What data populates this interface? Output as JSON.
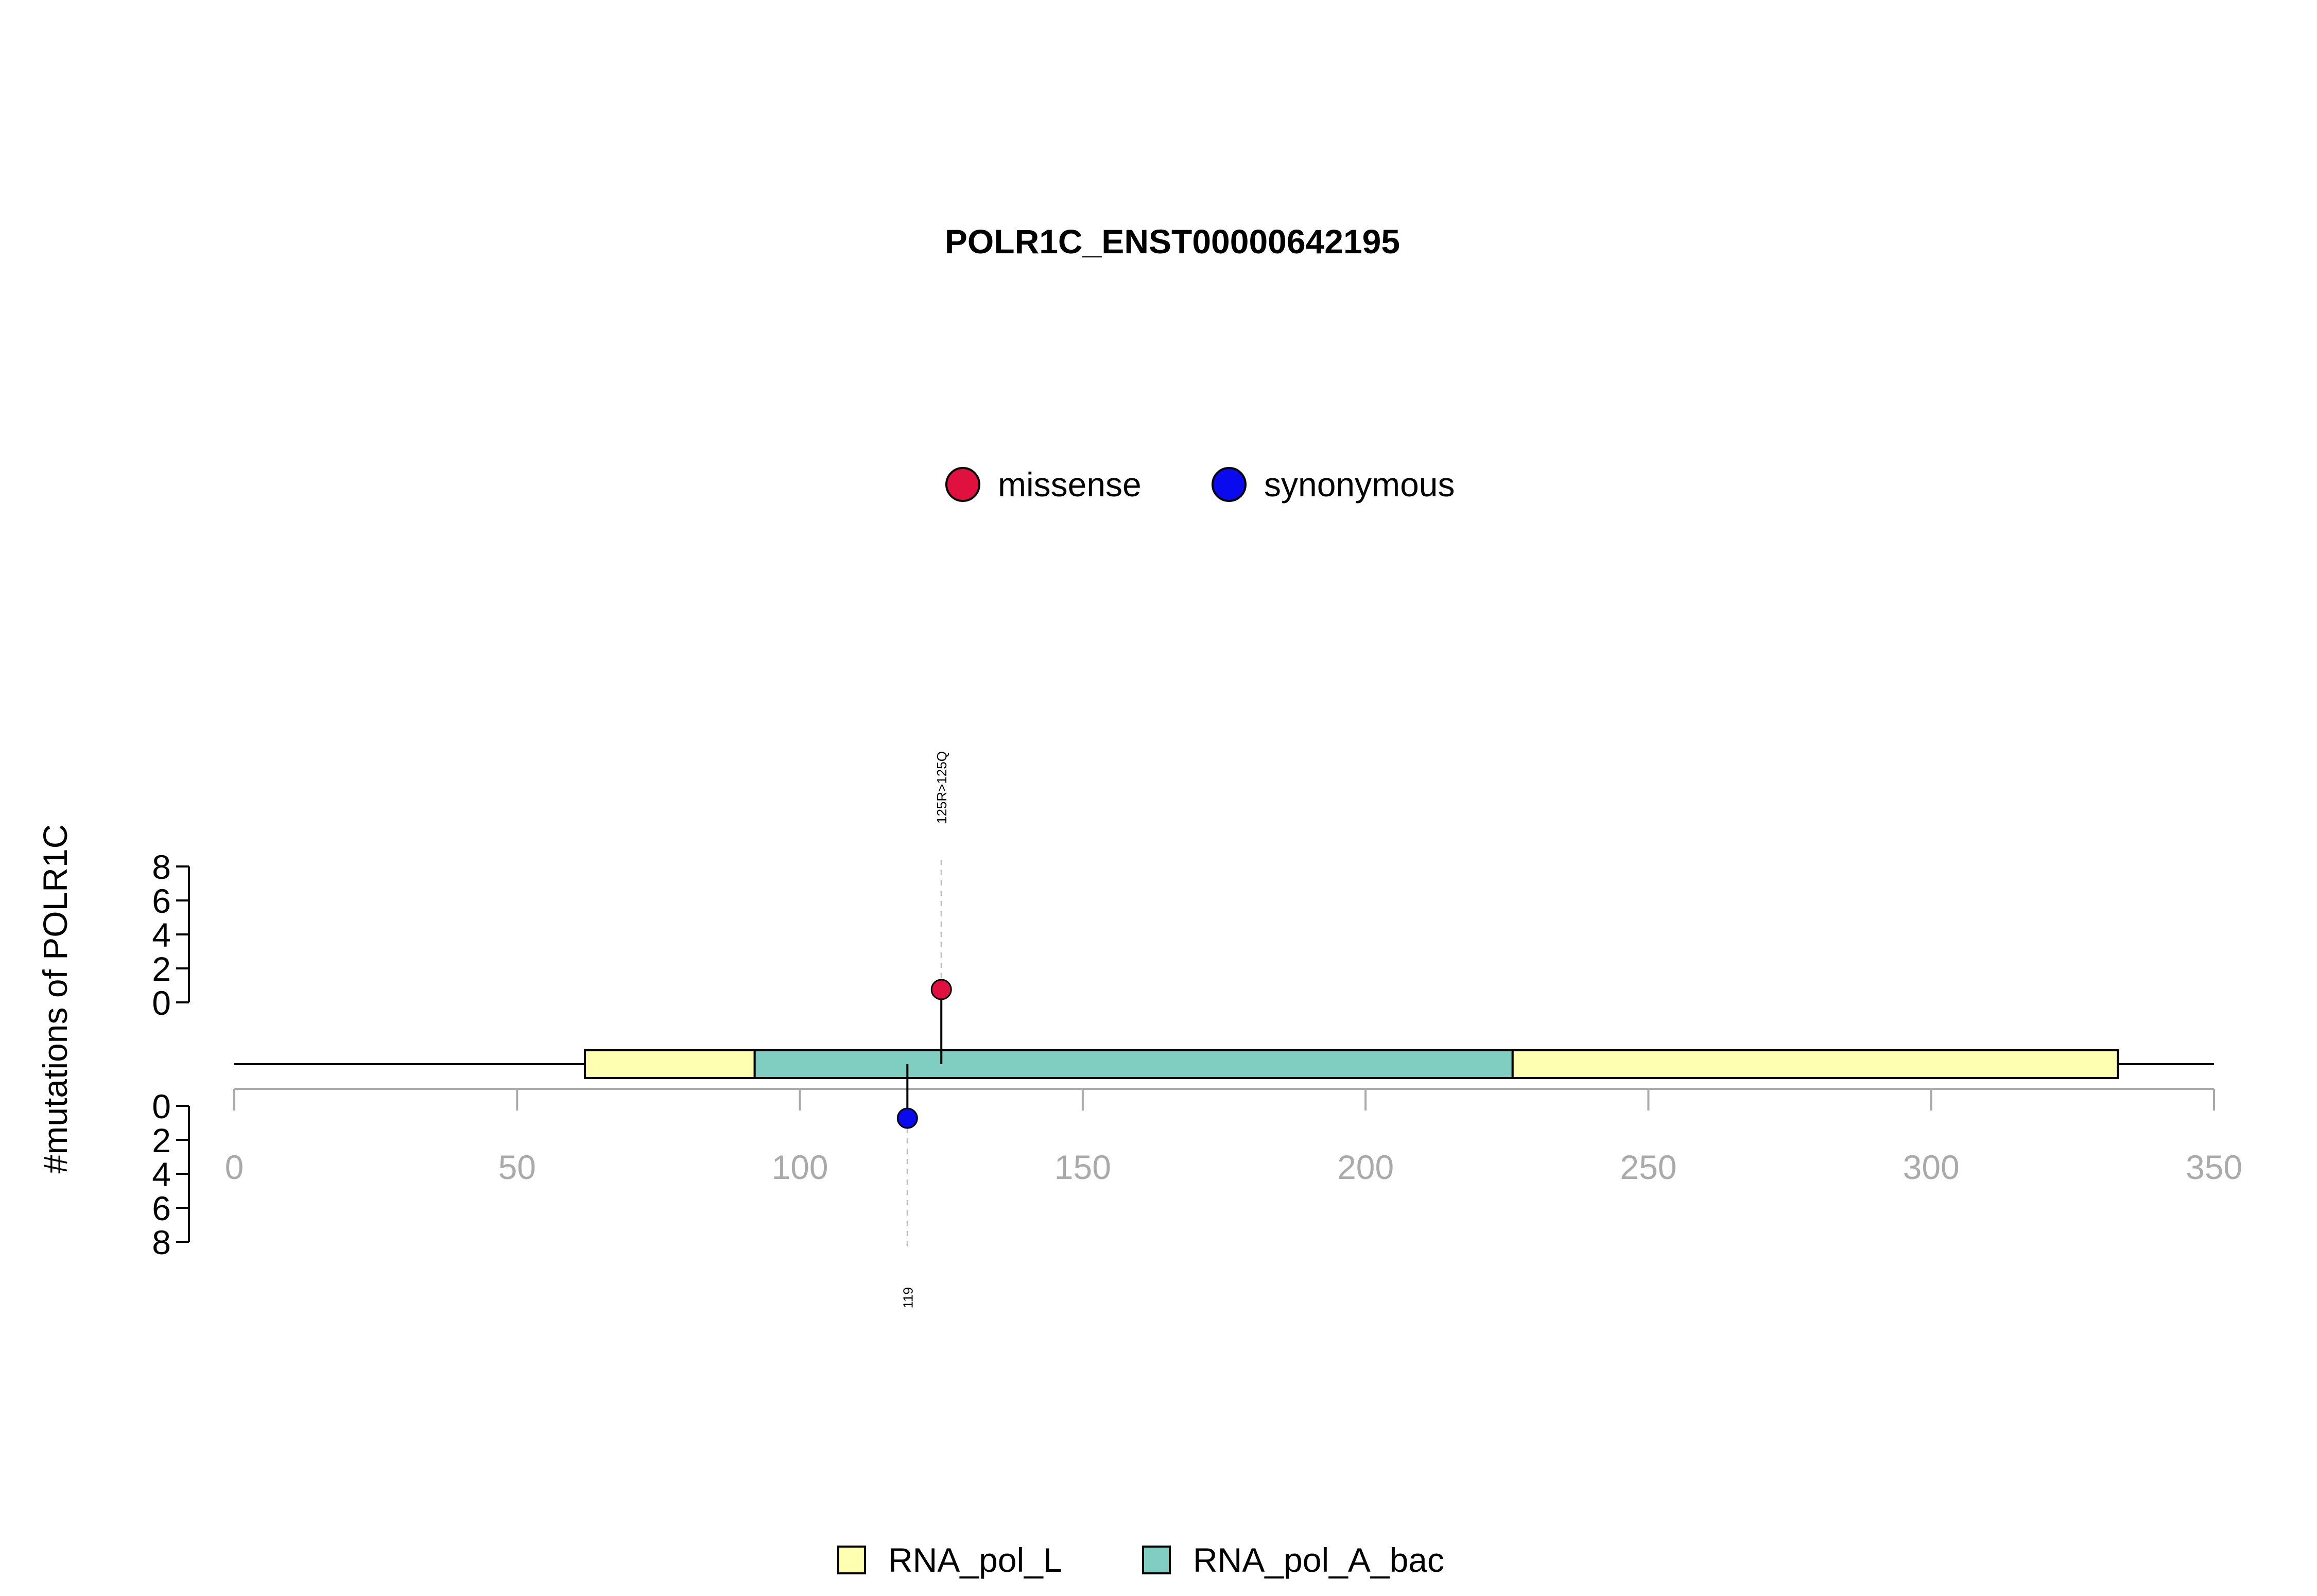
{
  "chart_data": {
    "type": "lollipop",
    "title": "POLR1C_ENST00000642195",
    "ylabel": "#mutations of POLR1C",
    "protein_length": 350,
    "x_ticks": [
      0,
      50,
      100,
      150,
      200,
      250,
      300,
      350
    ],
    "y_ticks": [
      0,
      2,
      4,
      6,
      8
    ],
    "ylim": [
      0,
      8
    ],
    "mutation_legend": [
      {
        "name": "missense",
        "color": "#e0103f"
      },
      {
        "name": "synonymous",
        "color": "#0a0aee"
      }
    ],
    "domain_legend": [
      {
        "name": "RNA_pol_L",
        "color": "#ffffb2"
      },
      {
        "name": "RNA_pol_A_bac",
        "color": "#80cdc1"
      }
    ],
    "domains": [
      {
        "name": "RNA_pol_L",
        "start": 62,
        "end": 92,
        "color": "#ffffb2"
      },
      {
        "name": "RNA_pol_A_bac",
        "start": 92,
        "end": 226,
        "color": "#80cdc1"
      },
      {
        "name": "RNA_pol_L",
        "start": 226,
        "end": 333,
        "color": "#ffffb2"
      }
    ],
    "mutations": [
      {
        "position": 125,
        "count": 1,
        "type": "missense",
        "label": "125R>125Q",
        "side": "top",
        "color": "#e0103f"
      },
      {
        "position": 119,
        "count": 1,
        "type": "synonymous",
        "label": "119",
        "side": "bottom",
        "color": "#0a0aee"
      }
    ]
  }
}
